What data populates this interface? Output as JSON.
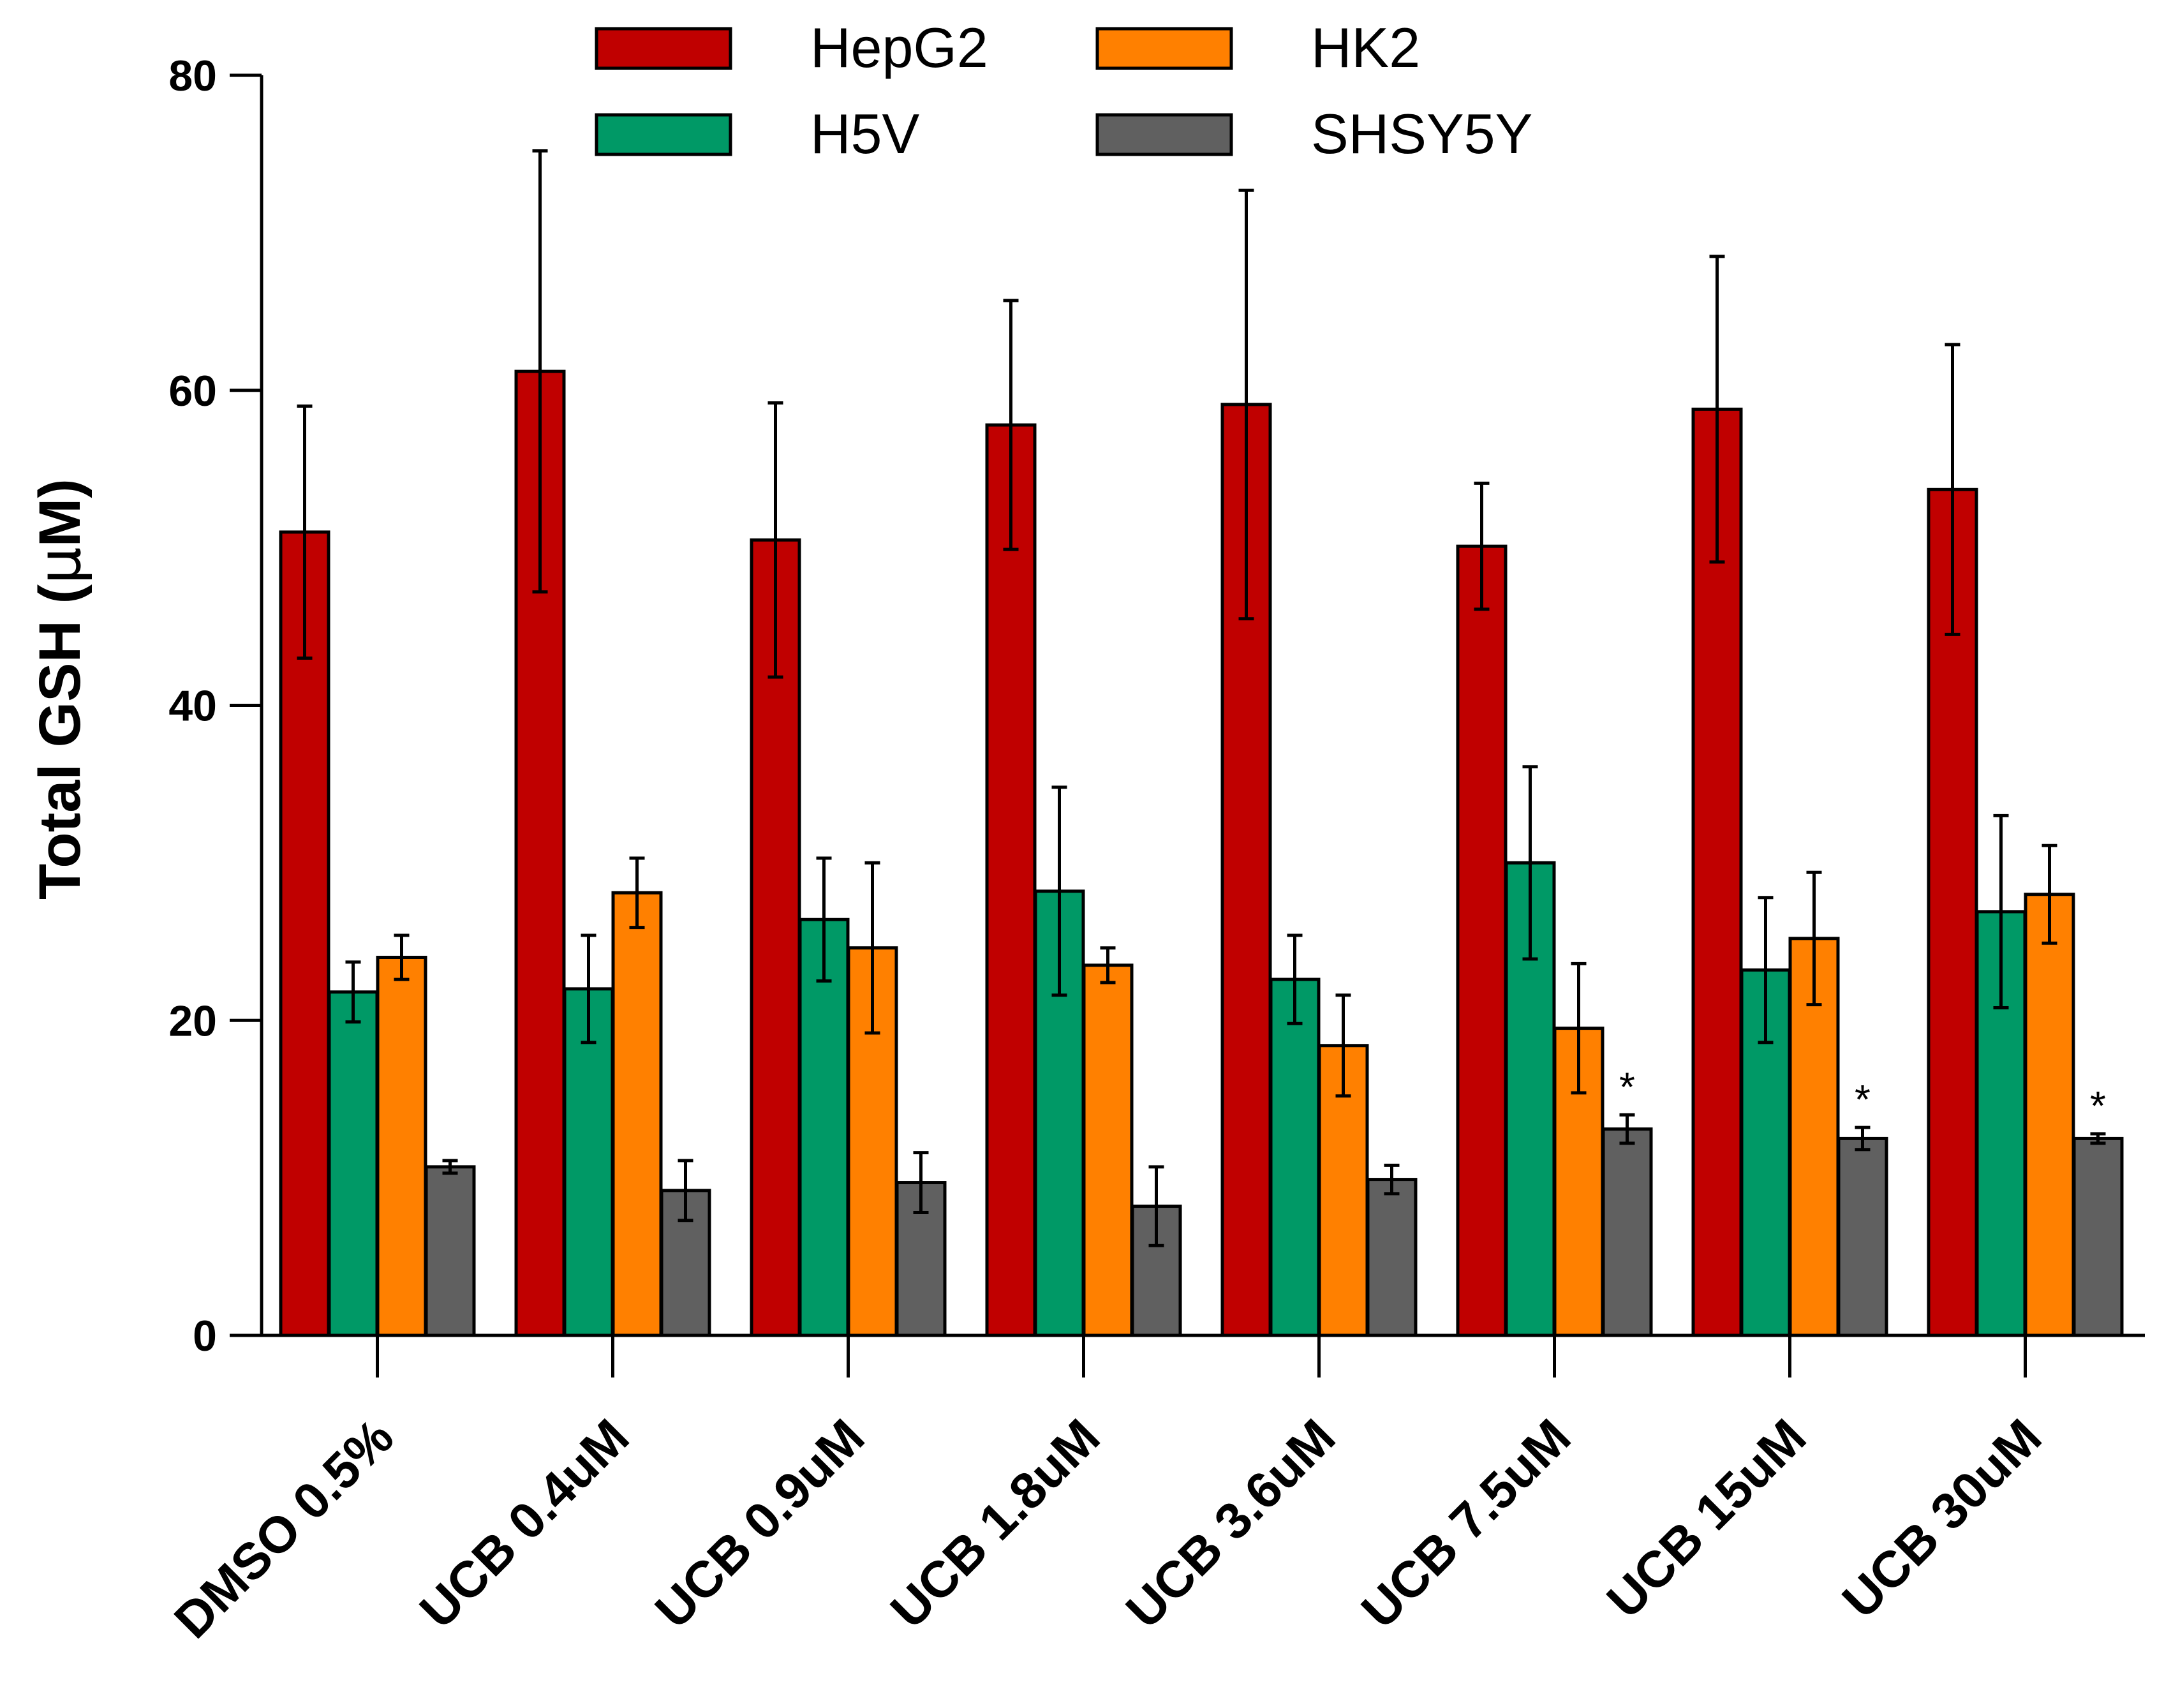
{
  "chart_data": {
    "type": "bar",
    "title": "",
    "xlabel": "",
    "ylabel": "Total GSH (",
    "ylabel_unit": "μ",
    "ylabel_tail": "M)",
    "ylim": [
      0,
      80
    ],
    "yticks": [
      0,
      20,
      40,
      60,
      80
    ],
    "categories": [
      "DMSO 0.5%",
      "UCB 0.4uM",
      "UCB 0.9uM",
      "UCB 1.8uM",
      "UCB 3.6uM",
      "UCB 7.5uM",
      "UCB 15uM",
      "UCB 30uM"
    ],
    "series": [
      {
        "name": "HepG2",
        "color": "#c00000",
        "values": [
          51.0,
          61.2,
          50.5,
          57.8,
          59.1,
          50.1,
          58.8,
          53.7
        ],
        "errors": [
          8.0,
          14.0,
          8.7,
          7.9,
          13.6,
          4.0,
          9.7,
          9.2
        ]
      },
      {
        "name": "H5V",
        "color": "#009966",
        "values": [
          21.8,
          22.0,
          26.4,
          28.2,
          22.6,
          30.0,
          23.2,
          26.9
        ],
        "errors": [
          1.9,
          3.4,
          3.9,
          6.6,
          2.8,
          6.1,
          4.6,
          6.1
        ]
      },
      {
        "name": "HK2",
        "color": "#ff8000",
        "values": [
          24.0,
          28.1,
          24.6,
          23.5,
          18.4,
          19.5,
          25.2,
          28.0
        ],
        "errors": [
          1.4,
          2.2,
          5.4,
          1.1,
          3.2,
          4.1,
          4.2,
          3.1
        ]
      },
      {
        "name": "SHSY5Y",
        "color": "#606060",
        "values": [
          10.7,
          9.2,
          9.7,
          8.2,
          9.9,
          13.1,
          12.5,
          12.5
        ],
        "errors": [
          0.4,
          1.9,
          1.9,
          2.5,
          0.9,
          0.9,
          0.7,
          0.3
        ]
      }
    ],
    "annotations": [
      {
        "text": "*",
        "series": "SHSY5Y",
        "category": "UCB 7.5uM"
      },
      {
        "text": "*",
        "series": "SHSY5Y",
        "category": "UCB 15uM"
      },
      {
        "text": "*",
        "series": "SHSY5Y",
        "category": "UCB 30uM"
      }
    ],
    "legend_position": "top-center",
    "grid": false
  }
}
